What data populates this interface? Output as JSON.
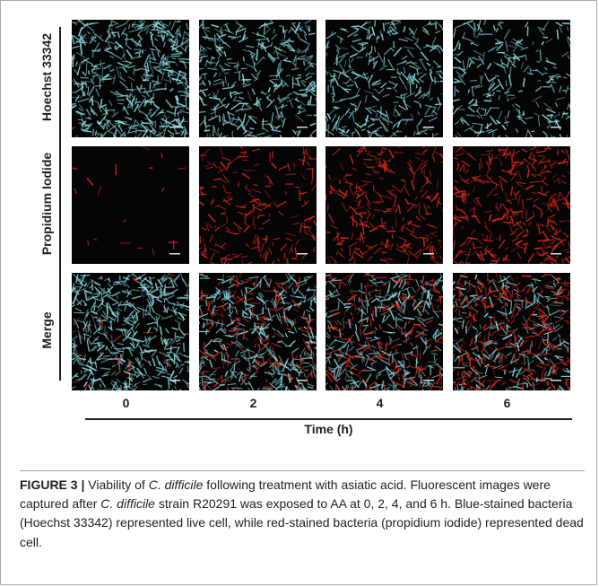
{
  "figure": {
    "rows": [
      {
        "label": "Hoechst 33342"
      },
      {
        "label": "Propidium Iodide"
      },
      {
        "label": "Merge"
      }
    ],
    "columns": [
      "0",
      "2",
      "4",
      "6"
    ],
    "x_axis_title": "Time (h)",
    "panels": [
      [
        {
          "blue": 1.0,
          "red": 0.0
        },
        {
          "blue": 0.75,
          "red": 0.0
        },
        {
          "blue": 0.65,
          "red": 0.0
        },
        {
          "blue": 0.5,
          "red": 0.0
        }
      ],
      [
        {
          "blue": 0.0,
          "red": 0.05
        },
        {
          "blue": 0.0,
          "red": 0.55
        },
        {
          "blue": 0.0,
          "red": 0.75
        },
        {
          "blue": 0.0,
          "red": 0.95
        }
      ],
      [
        {
          "blue": 1.0,
          "red": 0.05
        },
        {
          "blue": 0.75,
          "red": 0.45
        },
        {
          "blue": 0.65,
          "red": 0.55
        },
        {
          "blue": 0.5,
          "red": 0.85
        }
      ]
    ],
    "colors": {
      "blue_stain": "#8fe3ea",
      "red_stain": "#e0251c",
      "background": "#050505"
    }
  },
  "caption": {
    "label": "FIGURE 3 |",
    "s1": " Viability of ",
    "s2": "C. difficile",
    "s3": " following treatment with asiatic acid. Fluorescent images were captured after ",
    "s4": "C. difficile",
    "s5": " strain R20291 was exposed to AA at 0, 2, 4, and 6 h. Blue-stained bacteria (Hoechst 33342) represented live cell, while red-stained bacteria (propidium iodide) represented dead cell."
  }
}
